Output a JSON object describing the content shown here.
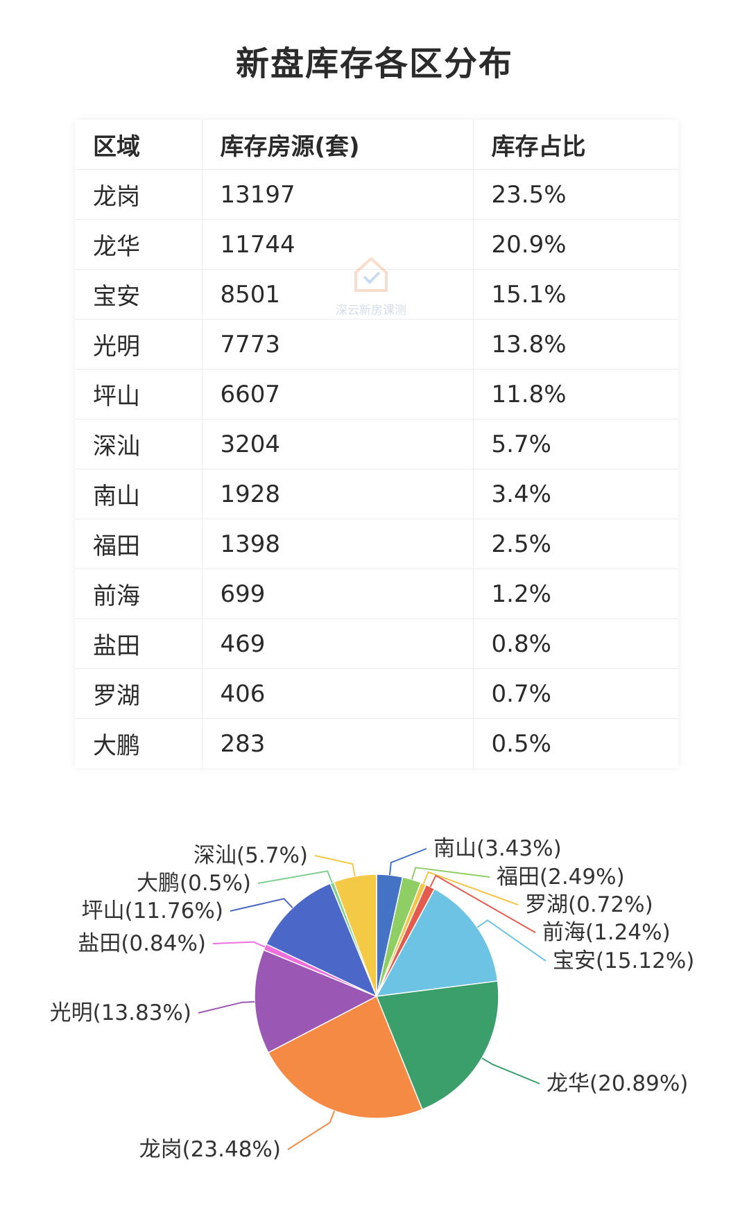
{
  "title": "新盘库存各区分布",
  "table": {
    "headers": [
      "区域",
      "库存房源(套)",
      "库存占比"
    ],
    "rows": [
      [
        "龙岗",
        "13197",
        "23.5%"
      ],
      [
        "龙华",
        "11744",
        "20.9%"
      ],
      [
        "宝安",
        "8501",
        "15.1%"
      ],
      [
        "光明",
        "7773",
        "13.8%"
      ],
      [
        "坪山",
        "6607",
        "11.8%"
      ],
      [
        "深汕",
        "3204",
        "5.7%"
      ],
      [
        "南山",
        "1928",
        "3.4%"
      ],
      [
        "福田",
        "1398",
        "2.5%"
      ],
      [
        "前海",
        "699",
        "1.2%"
      ],
      [
        "盐田",
        "469",
        "0.8%"
      ],
      [
        "罗湖",
        "406",
        "0.7%"
      ],
      [
        "大鹏",
        "283",
        "0.5%"
      ]
    ]
  },
  "watermark": "深云新房课测",
  "chart_data": {
    "type": "pie",
    "title": "",
    "slices": [
      {
        "name": "南山",
        "value": 3.43,
        "label": "南山(3.43%)",
        "color": "#4472c4"
      },
      {
        "name": "福田",
        "value": 2.49,
        "label": "福田(2.49%)",
        "color": "#8fce65"
      },
      {
        "name": "罗湖",
        "value": 0.72,
        "label": "罗湖(0.72%)",
        "color": "#f5c446"
      },
      {
        "name": "前海",
        "value": 1.24,
        "label": "前海(1.24%)",
        "color": "#e35b4f"
      },
      {
        "name": "宝安",
        "value": 15.12,
        "label": "宝安(15.12%)",
        "color": "#6cc3e3"
      },
      {
        "name": "龙华",
        "value": 20.89,
        "label": "龙华(20.89%)",
        "color": "#3a9f6b"
      },
      {
        "name": "龙岗",
        "value": 23.48,
        "label": "龙岗(23.48%)",
        "color": "#f58a45"
      },
      {
        "name": "光明",
        "value": 13.83,
        "label": "光明(13.83%)",
        "color": "#9b57b4"
      },
      {
        "name": "盐田",
        "value": 0.84,
        "label": "盐田(0.84%)",
        "color": "#ee6fdc"
      },
      {
        "name": "坪山",
        "value": 11.76,
        "label": "坪山(11.76%)",
        "color": "#4b68c8"
      },
      {
        "name": "大鹏",
        "value": 0.5,
        "label": "大鹏(0.5%)",
        "color": "#7fcf8e"
      },
      {
        "name": "深汕",
        "value": 5.7,
        "label": "深汕(5.7%)",
        "color": "#f3c945"
      }
    ]
  }
}
